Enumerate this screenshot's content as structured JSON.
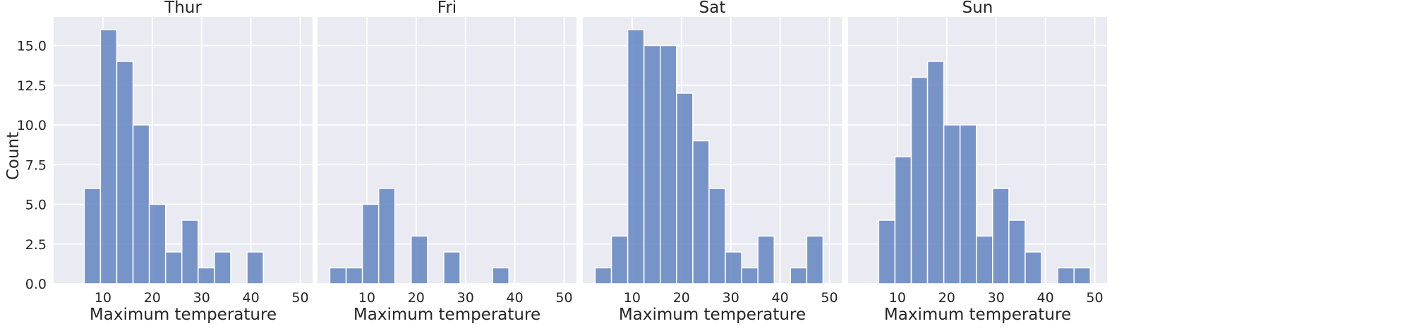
{
  "chart_data": {
    "type": "bar",
    "xlabel": "Maximum temperature",
    "ylabel": "Count",
    "xlim": [
      0,
      52.5
    ],
    "ylim": [
      0,
      16.8
    ],
    "x_ticks": [
      10,
      20,
      30,
      40,
      50
    ],
    "y_ticks": [
      0,
      2.5,
      5,
      7.5,
      10,
      12.5,
      15
    ],
    "y_tick_labels": [
      "0.0",
      "2.5",
      "5.0",
      "7.5",
      "10.0",
      "12.5",
      "15.0"
    ],
    "grid": true,
    "colors": {
      "bar": "#6a8bc4",
      "background": "#eaeaf2",
      "grid": "#ffffff",
      "text": "#262626"
    },
    "panels": [
      {
        "title": "Thur",
        "bins": [
          {
            "x0": 6.2,
            "x1": 9.5,
            "count": 6
          },
          {
            "x0": 9.5,
            "x1": 12.8,
            "count": 16
          },
          {
            "x0": 12.8,
            "x1": 16.1,
            "count": 14
          },
          {
            "x0": 16.1,
            "x1": 19.4,
            "count": 10
          },
          {
            "x0": 19.4,
            "x1": 22.7,
            "count": 5
          },
          {
            "x0": 22.7,
            "x1": 26.0,
            "count": 2
          },
          {
            "x0": 26.0,
            "x1": 29.3,
            "count": 4
          },
          {
            "x0": 29.3,
            "x1": 32.6,
            "count": 1
          },
          {
            "x0": 32.6,
            "x1": 35.9,
            "count": 2
          },
          {
            "x0": 39.2,
            "x1": 42.5,
            "count": 2
          }
        ]
      },
      {
        "title": "Fri",
        "bins": [
          {
            "x0": 2.5,
            "x1": 5.8,
            "count": 1
          },
          {
            "x0": 5.8,
            "x1": 9.1,
            "count": 1
          },
          {
            "x0": 9.1,
            "x1": 12.4,
            "count": 5
          },
          {
            "x0": 12.4,
            "x1": 15.7,
            "count": 6
          },
          {
            "x0": 19.0,
            "x1": 22.3,
            "count": 3
          },
          {
            "x0": 25.6,
            "x1": 28.9,
            "count": 2
          },
          {
            "x0": 35.5,
            "x1": 38.8,
            "count": 1
          }
        ]
      },
      {
        "title": "Sat",
        "bins": [
          {
            "x0": 2.5,
            "x1": 5.8,
            "count": 1
          },
          {
            "x0": 5.8,
            "x1": 9.1,
            "count": 3
          },
          {
            "x0": 9.1,
            "x1": 12.4,
            "count": 16
          },
          {
            "x0": 12.4,
            "x1": 15.7,
            "count": 15
          },
          {
            "x0": 15.7,
            "x1": 19.0,
            "count": 15
          },
          {
            "x0": 19.0,
            "x1": 22.3,
            "count": 12
          },
          {
            "x0": 22.3,
            "x1": 25.6,
            "count": 9
          },
          {
            "x0": 25.6,
            "x1": 28.9,
            "count": 6
          },
          {
            "x0": 28.9,
            "x1": 32.2,
            "count": 2
          },
          {
            "x0": 32.2,
            "x1": 35.5,
            "count": 1
          },
          {
            "x0": 35.5,
            "x1": 38.8,
            "count": 3
          },
          {
            "x0": 42.1,
            "x1": 45.4,
            "count": 1
          },
          {
            "x0": 45.4,
            "x1": 48.7,
            "count": 3
          }
        ]
      },
      {
        "title": "Sun",
        "bins": [
          {
            "x0": 6.2,
            "x1": 9.5,
            "count": 4
          },
          {
            "x0": 9.5,
            "x1": 12.8,
            "count": 8
          },
          {
            "x0": 12.8,
            "x1": 16.1,
            "count": 13
          },
          {
            "x0": 16.1,
            "x1": 19.4,
            "count": 14
          },
          {
            "x0": 19.4,
            "x1": 22.7,
            "count": 10
          },
          {
            "x0": 22.7,
            "x1": 26.0,
            "count": 10
          },
          {
            "x0": 26.0,
            "x1": 29.3,
            "count": 3
          },
          {
            "x0": 29.3,
            "x1": 32.6,
            "count": 6
          },
          {
            "x0": 32.6,
            "x1": 35.9,
            "count": 4
          },
          {
            "x0": 35.9,
            "x1": 39.2,
            "count": 2
          },
          {
            "x0": 42.5,
            "x1": 45.8,
            "count": 1
          },
          {
            "x0": 45.8,
            "x1": 49.1,
            "count": 1
          }
        ]
      }
    ]
  }
}
